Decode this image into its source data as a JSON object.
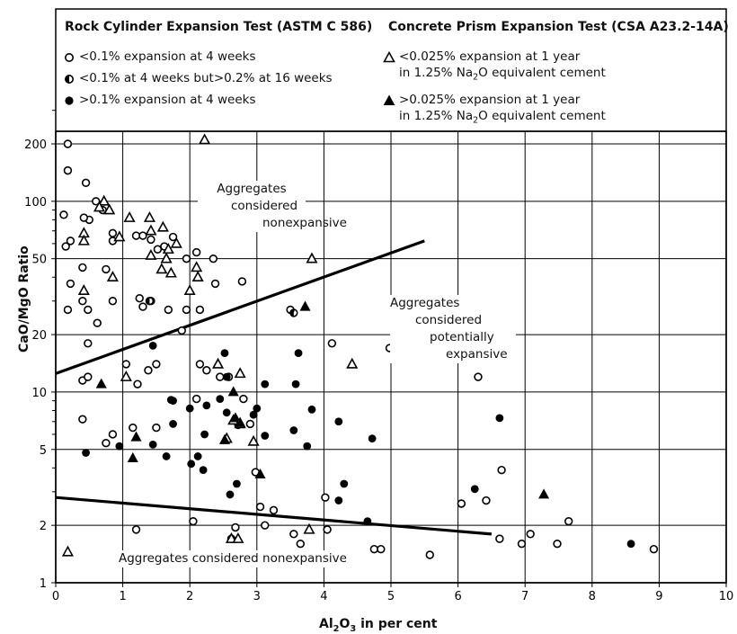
{
  "chart_data": {
    "type": "scatter",
    "xlabel": "Al₂O₃ in per cent",
    "ylabel": "CaO/MgO Ratio",
    "xlim": [
      0,
      10
    ],
    "ylim": [
      1,
      400
    ],
    "yscale": "log",
    "x_ticks": [
      "0",
      "1",
      "2",
      "3",
      "4",
      "5",
      "6",
      "7",
      "8",
      "9",
      "10"
    ],
    "y_ticks": [
      {
        "value": 1,
        "label": "1"
      },
      {
        "value": 2,
        "label": "2"
      },
      {
        "value": 5,
        "label": "5"
      },
      {
        "value": 10,
        "label": "10"
      },
      {
        "value": 20,
        "label": "20"
      },
      {
        "value": 50,
        "label": "50"
      },
      {
        "value": 100,
        "label": "100"
      },
      {
        "value": 200,
        "label": "200"
      }
    ],
    "grid": true,
    "legend": {
      "left_heading": "Rock Cylinder Expansion Test (ASTM C 586)",
      "right_heading": "Concrete Prism Expansion Test (CSA A23.2-14A)",
      "items": [
        {
          "marker": "circle-open",
          "label": "<0.1% expansion at 4 weeks"
        },
        {
          "marker": "circle-half",
          "label": "<0.1% at 4 weeks but>0.2% at 16 weeks"
        },
        {
          "marker": "circle-filled",
          "label": ">0.1% expansion at 4 weeks"
        },
        {
          "marker": "triangle-open",
          "label": "<0.025% expansion at 1 year",
          "label2_pre": "in 1.25% Na",
          "label2_sub": "2",
          "label2_post": "O equivalent cement"
        },
        {
          "marker": "triangle-filled",
          "label": ">0.025% expansion at 1 year",
          "label2_pre": "in 1.25% Na",
          "label2_sub": "2",
          "label2_post": "O equivalent cement"
        }
      ]
    },
    "annotations": {
      "upper_nonexpansive": [
        "Aggregates",
        "considered",
        "nonexpansive"
      ],
      "potentially_expansive": [
        "Aggregates",
        "considered",
        "potentially",
        "expansive"
      ],
      "lower_nonexpansive": "Aggregates considered nonexpansive"
    },
    "boundary_lines": [
      {
        "x": [
          0,
          5.5
        ],
        "y": [
          12.5,
          62
        ]
      },
      {
        "x": [
          0,
          6.5
        ],
        "y": [
          2.8,
          1.8
        ]
      }
    ],
    "series": [
      {
        "name": "<0.1% expansion at 4 weeks",
        "marker": "circle-open",
        "points": [
          [
            0.18,
            200
          ],
          [
            0.18,
            145
          ],
          [
            0.12,
            85
          ],
          [
            0.15,
            58
          ],
          [
            0.22,
            62
          ],
          [
            0.45,
            125
          ],
          [
            0.6,
            100
          ],
          [
            0.7,
            90
          ],
          [
            0.5,
            80
          ],
          [
            0.42,
            82
          ],
          [
            0.85,
            68
          ],
          [
            0.85,
            62
          ],
          [
            0.4,
            45
          ],
          [
            0.75,
            44
          ],
          [
            0.22,
            37
          ],
          [
            0.4,
            30
          ],
          [
            0.18,
            27
          ],
          [
            0.48,
            27
          ],
          [
            0.85,
            30
          ],
          [
            0.62,
            23
          ],
          [
            0.48,
            18
          ],
          [
            0.4,
            11.5
          ],
          [
            0.48,
            12
          ],
          [
            1.2,
            66
          ],
          [
            1.3,
            66
          ],
          [
            1.42,
            63
          ],
          [
            1.52,
            56
          ],
          [
            1.62,
            58
          ],
          [
            1.75,
            65
          ],
          [
            1.95,
            50
          ],
          [
            2.1,
            54
          ],
          [
            2.35,
            50
          ],
          [
            1.25,
            31
          ],
          [
            1.3,
            28
          ],
          [
            1.42,
            30
          ],
          [
            1.68,
            27
          ],
          [
            1.88,
            21
          ],
          [
            1.95,
            27
          ],
          [
            2.15,
            27
          ],
          [
            2.38,
            37
          ],
          [
            2.78,
            38
          ],
          [
            1.05,
            14
          ],
          [
            1.22,
            11
          ],
          [
            1.38,
            13
          ],
          [
            1.5,
            14
          ],
          [
            2.15,
            14
          ],
          [
            2.25,
            13
          ],
          [
            2.45,
            12
          ],
          [
            2.58,
            12
          ],
          [
            2.8,
            9.2
          ],
          [
            2.9,
            6.8
          ],
          [
            2.1,
            9.2
          ],
          [
            3.5,
            27
          ],
          [
            4.12,
            18
          ],
          [
            4.98,
            17
          ],
          [
            5.1,
            18
          ],
          [
            6.3,
            12
          ],
          [
            0.4,
            7.2
          ],
          [
            0.85,
            6
          ],
          [
            1.15,
            6.5
          ],
          [
            1.5,
            6.5
          ],
          [
            0.75,
            5.4
          ],
          [
            2.05,
            2.1
          ],
          [
            2.62,
            1.7
          ],
          [
            2.68,
            1.95
          ],
          [
            2.98,
            3.8
          ],
          [
            3.05,
            2.5
          ],
          [
            3.12,
            2
          ],
          [
            3.25,
            2.4
          ],
          [
            3.55,
            1.8
          ],
          [
            3.65,
            1.6
          ],
          [
            4.02,
            2.8
          ],
          [
            4.05,
            1.9
          ],
          [
            4.75,
            1.5
          ],
          [
            4.85,
            1.5
          ],
          [
            5.58,
            1.4
          ],
          [
            6.05,
            2.6
          ],
          [
            6.42,
            2.7
          ],
          [
            6.62,
            1.7
          ],
          [
            6.65,
            3.9
          ],
          [
            6.95,
            1.6
          ],
          [
            7.08,
            1.8
          ],
          [
            7.48,
            1.6
          ],
          [
            7.65,
            2.1
          ],
          [
            8.92,
            1.5
          ],
          [
            1.2,
            1.9
          ]
        ]
      },
      {
        "name": "<0.1% at 4 weeks but>0.2% at 16 weeks",
        "marker": "circle-half",
        "points": [
          [
            1.4,
            30
          ],
          [
            3.55,
            26
          ]
        ]
      },
      {
        "name": ">0.1% expansion at 4 weeks",
        "marker": "circle-filled",
        "points": [
          [
            0.45,
            4.8
          ],
          [
            0.95,
            5.2
          ],
          [
            1.45,
            5.3
          ],
          [
            1.65,
            4.6
          ],
          [
            1.75,
            6.8
          ],
          [
            1.75,
            9
          ],
          [
            2.0,
            8.2
          ],
          [
            2.12,
            4.6
          ],
          [
            2.02,
            4.2
          ],
          [
            2.2,
            3.9
          ],
          [
            2.25,
            8.5
          ],
          [
            2.22,
            6
          ],
          [
            2.45,
            9.2
          ],
          [
            2.52,
            16
          ],
          [
            2.55,
            12
          ],
          [
            2.55,
            7.8
          ],
          [
            2.6,
            2.9
          ],
          [
            2.7,
            3.3
          ],
          [
            2.72,
            6.7
          ],
          [
            2.95,
            7.6
          ],
          [
            3.0,
            8.2
          ],
          [
            3.12,
            11
          ],
          [
            3.12,
            5.9
          ],
          [
            3.55,
            6.3
          ],
          [
            3.58,
            11
          ],
          [
            3.62,
            16
          ],
          [
            3.75,
            5.2
          ],
          [
            3.82,
            8.1
          ],
          [
            4.22,
            7
          ],
          [
            4.22,
            2.7
          ],
          [
            4.3,
            3.3
          ],
          [
            4.65,
            2.1
          ],
          [
            4.72,
            5.7
          ],
          [
            6.25,
            3.1
          ],
          [
            6.62,
            7.3
          ],
          [
            8.58,
            1.6
          ],
          [
            1.45,
            17.5
          ],
          [
            1.72,
            9.1
          ]
        ]
      },
      {
        "name": "<0.025% expansion at 1 year in 1.25% Na₂O equivalent cement",
        "marker": "triangle-open",
        "points": [
          [
            0.18,
            1.45
          ],
          [
            2.22,
            210
          ],
          [
            0.72,
            100
          ],
          [
            0.65,
            93
          ],
          [
            0.8,
            90
          ],
          [
            0.42,
            68
          ],
          [
            0.42,
            62
          ],
          [
            0.42,
            34
          ],
          [
            0.85,
            40
          ],
          [
            0.95,
            65
          ],
          [
            1.1,
            82
          ],
          [
            1.4,
            82
          ],
          [
            1.42,
            70
          ],
          [
            1.42,
            52
          ],
          [
            1.6,
            73
          ],
          [
            1.68,
            56
          ],
          [
            1.65,
            50
          ],
          [
            1.72,
            42
          ],
          [
            1.58,
            44
          ],
          [
            1.8,
            60
          ],
          [
            2.1,
            45
          ],
          [
            2.12,
            40
          ],
          [
            2.0,
            34
          ],
          [
            2.52,
            73
          ],
          [
            1.05,
            12
          ],
          [
            2.42,
            14
          ],
          [
            2.75,
            12.5
          ],
          [
            3.82,
            50
          ],
          [
            4.42,
            14
          ],
          [
            2.55,
            5.7
          ],
          [
            2.65,
            7.1
          ],
          [
            2.75,
            6.8
          ],
          [
            2.95,
            5.5
          ],
          [
            2.62,
            1.7
          ],
          [
            2.72,
            1.7
          ],
          [
            3.78,
            1.9
          ]
        ]
      },
      {
        "name": ">0.025% expansion at 1 year in 1.25% Na₂O equivalent cement",
        "marker": "triangle-filled",
        "points": [
          [
            0.68,
            11
          ],
          [
            1.15,
            4.5
          ],
          [
            1.2,
            5.8
          ],
          [
            2.65,
            10
          ],
          [
            2.75,
            6.9
          ],
          [
            2.68,
            7.3
          ],
          [
            3.05,
            3.7
          ],
          [
            3.72,
            28
          ],
          [
            7.28,
            2.9
          ],
          [
            2.52,
            5.6
          ]
        ]
      }
    ]
  }
}
